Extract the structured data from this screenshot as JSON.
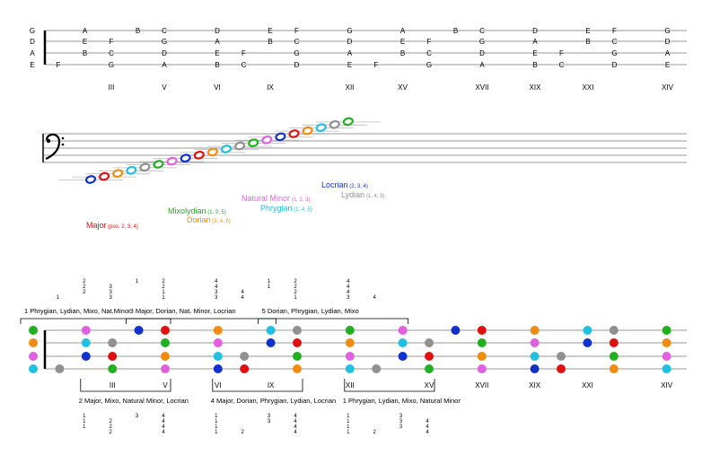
{
  "fretboard_top": {
    "string_names": [
      "G",
      "D",
      "A",
      "E"
    ],
    "notes": [
      {
        "fret": 1,
        "string": 0,
        "label": "A"
      },
      {
        "fret": 3,
        "string": 0,
        "label": "B"
      },
      {
        "fret": 4,
        "string": 0,
        "label": "C"
      },
      {
        "fret": 6,
        "string": 0,
        "label": "D"
      },
      {
        "fret": 8,
        "string": 0,
        "label": "E"
      },
      {
        "fret": 9,
        "string": 0,
        "label": "F"
      },
      {
        "fret": 11,
        "string": 0,
        "label": "G"
      },
      {
        "fret": 13,
        "string": 0,
        "label": "A"
      },
      {
        "fret": 15,
        "string": 0,
        "label": "B"
      },
      {
        "fret": 16,
        "string": 0,
        "label": "C"
      },
      {
        "fret": 18,
        "string": 0,
        "label": "D"
      },
      {
        "fret": 20,
        "string": 0,
        "label": "E"
      },
      {
        "fret": 21,
        "string": 0,
        "label": "F"
      },
      {
        "fret": 23,
        "string": 0,
        "label": "G"
      },
      {
        "fret": 1,
        "string": 1,
        "label": "E"
      },
      {
        "fret": 2,
        "string": 1,
        "label": "F"
      },
      {
        "fret": 4,
        "string": 1,
        "label": "G"
      },
      {
        "fret": 6,
        "string": 1,
        "label": "A"
      },
      {
        "fret": 8,
        "string": 1,
        "label": "B"
      },
      {
        "fret": 9,
        "string": 1,
        "label": "C"
      },
      {
        "fret": 11,
        "string": 1,
        "label": "D"
      },
      {
        "fret": 13,
        "string": 1,
        "label": "E"
      },
      {
        "fret": 14,
        "string": 1,
        "label": "F"
      },
      {
        "fret": 16,
        "string": 1,
        "label": "G"
      },
      {
        "fret": 18,
        "string": 1,
        "label": "A"
      },
      {
        "fret": 20,
        "string": 1,
        "label": "B"
      },
      {
        "fret": 21,
        "string": 1,
        "label": "C"
      },
      {
        "fret": 23,
        "string": 1,
        "label": "D"
      },
      {
        "fret": 1,
        "string": 2,
        "label": "B"
      },
      {
        "fret": 2,
        "string": 2,
        "label": "C"
      },
      {
        "fret": 4,
        "string": 2,
        "label": "D"
      },
      {
        "fret": 6,
        "string": 2,
        "label": "E"
      },
      {
        "fret": 7,
        "string": 2,
        "label": "F"
      },
      {
        "fret": 9,
        "string": 2,
        "label": "G"
      },
      {
        "fret": 11,
        "string": 2,
        "label": "A"
      },
      {
        "fret": 13,
        "string": 2,
        "label": "B"
      },
      {
        "fret": 14,
        "string": 2,
        "label": "C"
      },
      {
        "fret": 16,
        "string": 2,
        "label": "D"
      },
      {
        "fret": 18,
        "string": 2,
        "label": "E"
      },
      {
        "fret": 19,
        "string": 2,
        "label": "F"
      },
      {
        "fret": 21,
        "string": 2,
        "label": "G"
      },
      {
        "fret": 23,
        "string": 2,
        "label": "A"
      },
      {
        "fret": 0,
        "string": 3,
        "label": "F"
      },
      {
        "fret": 2,
        "string": 3,
        "label": "G"
      },
      {
        "fret": 4,
        "string": 3,
        "label": "A"
      },
      {
        "fret": 6,
        "string": 3,
        "label": "B"
      },
      {
        "fret": 7,
        "string": 3,
        "label": "C"
      },
      {
        "fret": 9,
        "string": 3,
        "label": "D"
      },
      {
        "fret": 11,
        "string": 3,
        "label": "E"
      },
      {
        "fret": 12,
        "string": 3,
        "label": "F"
      },
      {
        "fret": 14,
        "string": 3,
        "label": "G"
      },
      {
        "fret": 16,
        "string": 3,
        "label": "A"
      },
      {
        "fret": 18,
        "string": 3,
        "label": "B"
      },
      {
        "fret": 19,
        "string": 3,
        "label": "C"
      },
      {
        "fret": 21,
        "string": 3,
        "label": "D"
      },
      {
        "fret": 23,
        "string": 3,
        "label": "E"
      }
    ],
    "position_markers": [
      {
        "fret": 2,
        "label": "III"
      },
      {
        "fret": 4,
        "label": "V"
      },
      {
        "fret": 6,
        "label": "VI"
      },
      {
        "fret": 8,
        "label": "IX"
      },
      {
        "fret": 11,
        "label": "XII"
      },
      {
        "fret": 13,
        "label": "XV"
      },
      {
        "fret": 16,
        "label": "XVII"
      },
      {
        "fret": 18,
        "label": "XIX"
      },
      {
        "fret": 20,
        "label": "XXI"
      },
      {
        "fret": 23,
        "label": "XIV"
      }
    ]
  },
  "staff": {
    "clef": "bass-clef",
    "note_colors": [
      "#1030d0",
      "#e01010",
      "#f08c10",
      "#20c0e0",
      "#909090",
      "#20b020",
      "#e060e0",
      "#1030d0",
      "#e01010",
      "#f08c10",
      "#20c0e0",
      "#909090",
      "#20b020",
      "#e060e0",
      "#1030d0",
      "#e01010",
      "#f08c10",
      "#20c0e0",
      "#909090",
      "#20b020"
    ]
  },
  "modes": [
    {
      "name": "Locrian",
      "suffix": "(2, 3, 4)",
      "color": "#1030d0"
    },
    {
      "name": "Lydian",
      "suffix": "(1, 4, 5)",
      "color": "#909090"
    },
    {
      "name": "Natural Minor",
      "suffix": "(1, 2, 3)",
      "color": "#e060e0"
    },
    {
      "name": "Phrygian",
      "suffix": "(1, 4, 5)",
      "color": "#20c0e0"
    },
    {
      "name": "Mixolydian",
      "suffix": "(1, 2, 5)",
      "color": "#20b020"
    },
    {
      "name": "Dorian",
      "suffix": "(3, 4, 5)",
      "color": "#f08c10"
    },
    {
      "name": "Major",
      "suffix": "(pos. 2, 3, 4)",
      "color": "#e01010"
    }
  ],
  "fretboard_bottom": {
    "dots": [
      {
        "fret": 0,
        "string": 0,
        "color": "#20b020"
      },
      {
        "fret": 0,
        "string": 1,
        "color": "#f08c10"
      },
      {
        "fret": 0,
        "string": 2,
        "color": "#e060e0"
      },
      {
        "fret": 0,
        "string": 3,
        "color": "#20c0e0"
      },
      {
        "fret": 1,
        "string": 3,
        "color": "#909090"
      },
      {
        "fret": 2,
        "string": 0,
        "color": "#e060e0"
      },
      {
        "fret": 2,
        "string": 1,
        "color": "#20c0e0"
      },
      {
        "fret": 2,
        "string": 2,
        "color": "#1030d0"
      },
      {
        "fret": 3,
        "string": 1,
        "color": "#909090"
      },
      {
        "fret": 3,
        "string": 2,
        "color": "#e01010"
      },
      {
        "fret": 3,
        "string": 3,
        "color": "#20b020"
      },
      {
        "fret": 4,
        "string": 0,
        "color": "#1030d0"
      },
      {
        "fret": 5,
        "string": 0,
        "color": "#e01010"
      },
      {
        "fret": 5,
        "string": 1,
        "color": "#20b020"
      },
      {
        "fret": 5,
        "string": 2,
        "color": "#f08c10"
      },
      {
        "fret": 5,
        "string": 3,
        "color": "#e060e0"
      },
      {
        "fret": 7,
        "string": 0,
        "color": "#f08c10"
      },
      {
        "fret": 7,
        "string": 1,
        "color": "#e060e0"
      },
      {
        "fret": 7,
        "string": 2,
        "color": "#20c0e0"
      },
      {
        "fret": 7,
        "string": 3,
        "color": "#1030d0"
      },
      {
        "fret": 8,
        "string": 2,
        "color": "#909090"
      },
      {
        "fret": 8,
        "string": 3,
        "color": "#e01010"
      },
      {
        "fret": 9,
        "string": 0,
        "color": "#20c0e0"
      },
      {
        "fret": 9,
        "string": 1,
        "color": "#1030d0"
      },
      {
        "fret": 10,
        "string": 0,
        "color": "#909090"
      },
      {
        "fret": 10,
        "string": 1,
        "color": "#e01010"
      },
      {
        "fret": 10,
        "string": 2,
        "color": "#20b020"
      },
      {
        "fret": 10,
        "string": 3,
        "color": "#f08c10"
      },
      {
        "fret": 12,
        "string": 0,
        "color": "#20b020"
      },
      {
        "fret": 12,
        "string": 1,
        "color": "#f08c10"
      },
      {
        "fret": 12,
        "string": 2,
        "color": "#e060e0"
      },
      {
        "fret": 12,
        "string": 3,
        "color": "#20c0e0"
      },
      {
        "fret": 13,
        "string": 3,
        "color": "#909090"
      },
      {
        "fret": 14,
        "string": 0,
        "color": "#e060e0"
      },
      {
        "fret": 14,
        "string": 1,
        "color": "#20c0e0"
      },
      {
        "fret": 14,
        "string": 2,
        "color": "#1030d0"
      },
      {
        "fret": 15,
        "string": 1,
        "color": "#909090"
      },
      {
        "fret": 15,
        "string": 2,
        "color": "#e01010"
      },
      {
        "fret": 15,
        "string": 3,
        "color": "#20b020"
      },
      {
        "fret": 16,
        "string": 0,
        "color": "#1030d0"
      },
      {
        "fret": 17,
        "string": 0,
        "color": "#e01010"
      },
      {
        "fret": 17,
        "string": 1,
        "color": "#20b020"
      },
      {
        "fret": 17,
        "string": 2,
        "color": "#f08c10"
      },
      {
        "fret": 17,
        "string": 3,
        "color": "#e060e0"
      },
      {
        "fret": 19,
        "string": 0,
        "color": "#f08c10"
      },
      {
        "fret": 19,
        "string": 1,
        "color": "#e060e0"
      },
      {
        "fret": 19,
        "string": 2,
        "color": "#20c0e0"
      },
      {
        "fret": 19,
        "string": 3,
        "color": "#1030d0"
      },
      {
        "fret": 20,
        "string": 2,
        "color": "#909090"
      },
      {
        "fret": 20,
        "string": 3,
        "color": "#e01010"
      },
      {
        "fret": 21,
        "string": 0,
        "color": "#20c0e0"
      },
      {
        "fret": 21,
        "string": 1,
        "color": "#1030d0"
      },
      {
        "fret": 22,
        "string": 0,
        "color": "#909090"
      },
      {
        "fret": 22,
        "string": 1,
        "color": "#e01010"
      },
      {
        "fret": 22,
        "string": 2,
        "color": "#20b020"
      },
      {
        "fret": 22,
        "string": 3,
        "color": "#f08c10"
      },
      {
        "fret": 24,
        "string": 0,
        "color": "#20b020"
      },
      {
        "fret": 24,
        "string": 1,
        "color": "#f08c10"
      },
      {
        "fret": 24,
        "string": 2,
        "color": "#e060e0"
      },
      {
        "fret": 24,
        "string": 3,
        "color": "#20c0e0"
      }
    ],
    "position_markers": [
      {
        "fret": 3,
        "label": "III"
      },
      {
        "fret": 5,
        "label": "V"
      },
      {
        "fret": 7,
        "label": "VI"
      },
      {
        "fret": 9,
        "label": "IX"
      },
      {
        "fret": 12,
        "label": "XII"
      },
      {
        "fret": 15,
        "label": "XV"
      },
      {
        "fret": 17,
        "label": "XVII"
      },
      {
        "fret": 19,
        "label": "XIX"
      },
      {
        "fret": 21,
        "label": "XXI"
      },
      {
        "fret": 24,
        "label": "XIV"
      }
    ],
    "top_positions": [
      {
        "start": 0,
        "end": 5,
        "label": "1 Phrygian, Lydian, Mixo, Nat.Minor"
      },
      {
        "start": 4,
        "end": 9,
        "label": "3 Major, Dorian, Nat. Minor, Locrian"
      },
      {
        "start": 9,
        "end": 14,
        "label": "5 Dorian, Phrygian, Lydian, Mixo"
      }
    ],
    "bottom_positions": [
      {
        "start": 2,
        "end": 5,
        "label": "2 Major, Mixo, Natural Minor, Locrian"
      },
      {
        "start": 7,
        "end": 10,
        "label": "4 Major, Dorian, Phrygian, Lydian, Locrian"
      },
      {
        "start": 12,
        "end": 15,
        "label": "1 Phrygian, Lydian, Mixo, Natural Minor"
      }
    ],
    "fingerings_top": [
      {
        "fret": 1,
        "digits": [
          "",
          "",
          "",
          "1"
        ]
      },
      {
        "fret": 2,
        "digits": [
          "2",
          "2",
          "2",
          ""
        ]
      },
      {
        "fret": 3,
        "digits": [
          "",
          "3",
          "3",
          "3"
        ]
      },
      {
        "fret": 4,
        "digits": [
          "1",
          "",
          "",
          ""
        ]
      },
      {
        "fret": 5,
        "digits": [
          "2",
          "2",
          "1",
          "1"
        ]
      },
      {
        "fret": 7,
        "digits": [
          "4",
          "4",
          "3",
          "3"
        ]
      },
      {
        "fret": 8,
        "digits": [
          "",
          "",
          "4",
          "4"
        ]
      },
      {
        "fret": 9,
        "digits": [
          "1",
          "1",
          "",
          ""
        ]
      },
      {
        "fret": 10,
        "digits": [
          "2",
          "2",
          "2",
          "1"
        ]
      },
      {
        "fret": 12,
        "digits": [
          "4",
          "4",
          "4",
          "3"
        ]
      },
      {
        "fret": 13,
        "digits": [
          "",
          "",
          "",
          "4"
        ]
      }
    ],
    "fingerings_bottom": [
      {
        "fret": 2,
        "digits": [
          "1",
          "1",
          "1",
          ""
        ]
      },
      {
        "fret": 3,
        "digits": [
          "",
          "2",
          "2",
          "2"
        ]
      },
      {
        "fret": 4,
        "digits": [
          "3",
          "",
          "",
          ""
        ]
      },
      {
        "fret": 5,
        "digits": [
          "4",
          "4",
          "4",
          "4"
        ]
      },
      {
        "fret": 7,
        "digits": [
          "1",
          "1",
          "1",
          "1"
        ]
      },
      {
        "fret": 8,
        "digits": [
          "",
          "",
          "",
          "2"
        ]
      },
      {
        "fret": 9,
        "digits": [
          "3",
          "3",
          "",
          ""
        ]
      },
      {
        "fret": 10,
        "digits": [
          "4",
          "4",
          "4",
          "4"
        ]
      },
      {
        "fret": 12,
        "digits": [
          "1",
          "1",
          "1",
          "1"
        ]
      },
      {
        "fret": 13,
        "digits": [
          "",
          "",
          "",
          "2"
        ]
      },
      {
        "fret": 14,
        "digits": [
          "3",
          "3",
          "3",
          ""
        ]
      },
      {
        "fret": 15,
        "digits": [
          "",
          "4",
          "4",
          "4"
        ]
      }
    ]
  }
}
